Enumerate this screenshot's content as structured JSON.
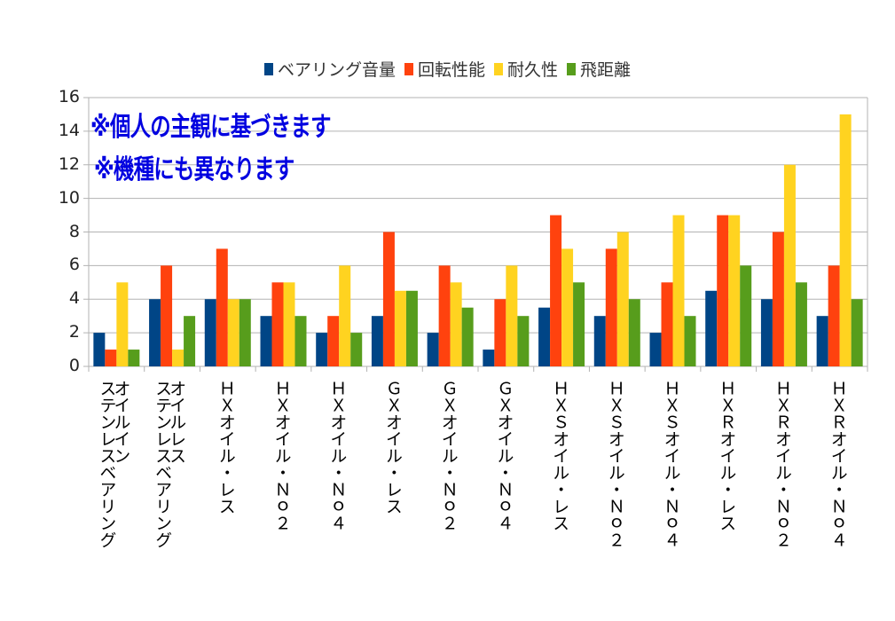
{
  "chart_data": {
    "type": "bar",
    "title": "",
    "xlabel": "",
    "ylabel": "",
    "ylim": [
      0,
      16
    ],
    "yticks": [
      0,
      2,
      4,
      6,
      8,
      10,
      12,
      14,
      16
    ],
    "grid": true,
    "legend_position": "top",
    "annotations": [
      "※個人の主観に基づきます",
      "※機種にも異なります"
    ],
    "categories": [
      "オイルイン\nステンレスベアリング",
      "オイルレス\nステンレスベアリング",
      "ＨＸオイル・レス",
      "ＨＸオイル・Ｎｏ２",
      "ＨＸオイル・Ｎｏ４",
      "ＧＸオイル・レス",
      "ＧＸオイル・Ｎｏ２",
      "ＧＸオイル・Ｎｏ４",
      "ＨＸＳオイル・レス",
      "ＨＸＳオイル・Ｎｏ２",
      "ＨＸＳオイル・Ｎｏ４",
      "ＨＸＲオイル・レス",
      "ＨＸＲオイル・Ｎｏ２",
      "ＨＸＲオイル・Ｎｏ４"
    ],
    "series": [
      {
        "name": "ベアリング音量",
        "color": "#004586",
        "values": [
          2,
          4,
          4,
          3,
          2,
          3,
          2,
          1,
          3.5,
          3,
          2,
          4.5,
          4,
          3
        ]
      },
      {
        "name": "回転性能",
        "color": "#ff420e",
        "values": [
          1,
          6,
          7,
          5,
          3,
          8,
          6,
          4,
          9,
          7,
          5,
          9,
          8,
          6
        ]
      },
      {
        "name": "耐久性",
        "color": "#ffd320",
        "values": [
          5,
          1,
          4,
          5,
          6,
          4.5,
          5,
          6,
          7,
          8,
          9,
          9,
          12,
          15
        ]
      },
      {
        "name": "飛距離",
        "color": "#579d1c",
        "values": [
          1,
          3,
          4,
          3,
          2,
          4.5,
          3.5,
          3,
          5,
          4,
          3,
          6,
          5,
          4
        ]
      }
    ]
  }
}
